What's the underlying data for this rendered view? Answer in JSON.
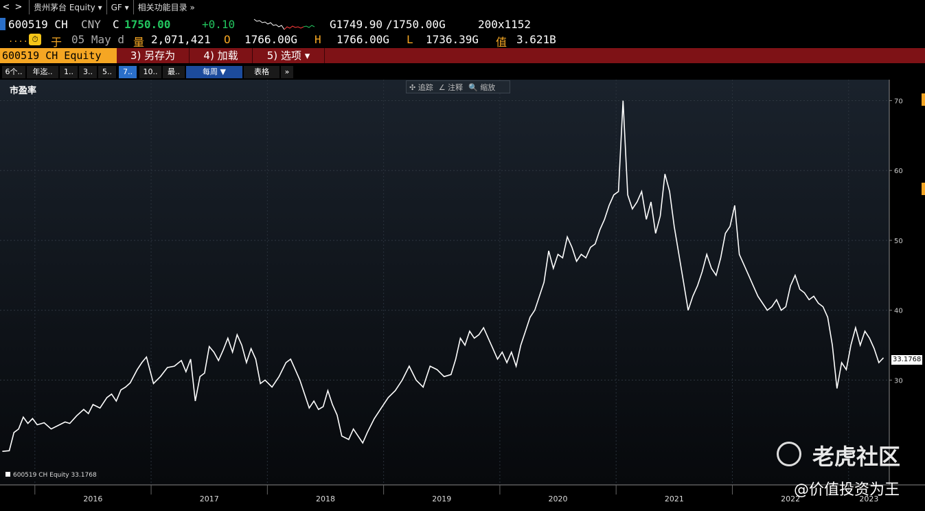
{
  "topnav": {
    "back": "<",
    "forward": ">",
    "security": "贵州茅台 Equity ▾",
    "func": "GF ▾",
    "related": "相关功能目录 »"
  },
  "quote": {
    "ticker": "600519 CH",
    "currency": "CNY",
    "c_label": "C",
    "last": "1750.00",
    "change": "+0.10",
    "bid": "G1749.90",
    "ask": "/1750.00G",
    "size": "200x1152",
    "dots": "....",
    "clock_icon": "clock-icon",
    "at_label": "于",
    "date": "05 May d",
    "vol_label": "量",
    "volume": "2,071,421",
    "o_label": "O",
    "open": "1766.00G",
    "h_label": "H",
    "high": "1766.00G",
    "l_label": "L",
    "low": "1736.39G",
    "val_label": "值",
    "value": "3.621B"
  },
  "fbar": {
    "security": "600519 CH Equity",
    "save": "3) 另存为",
    "load": "4) 加载",
    "options": "5) 选项 ▾"
  },
  "tabs": [
    "6个..",
    "年迄..",
    "1..",
    "3..",
    "5..",
    "7..",
    "10..",
    "最..",
    "每周 ▼",
    "表格",
    "»"
  ],
  "toolbox": {
    "track": "✣ 追踪",
    "annotate": "∠ 注释",
    "zoom": "🔍 缩放"
  },
  "chart_title": "市盈率",
  "legend": "600519 CH Equity  33.1768",
  "last_value": "33.1768",
  "watermark": {
    "brand": "老虎社区",
    "user": "@价值投资为王"
  },
  "colors": {
    "accent": "#f5a623",
    "fbar": "#7e1216",
    "up": "#22c55e",
    "orange": "#f5a623"
  },
  "chart_data": {
    "type": "line",
    "ylim": [
      15,
      73
    ],
    "yticks": [
      30,
      40,
      50,
      60,
      70
    ],
    "xlim": [
      2015.7,
      2023.35
    ],
    "xticks": [
      "2016",
      "2017",
      "2018",
      "2019",
      "2020",
      "2021",
      "2022",
      "2023"
    ],
    "series": [
      {
        "name": "600519 CH Equity",
        "points": [
          [
            2015.72,
            19.8
          ],
          [
            2015.78,
            19.9
          ],
          [
            2015.82,
            22.5
          ],
          [
            2015.86,
            23.0
          ],
          [
            2015.9,
            24.7
          ],
          [
            2015.94,
            23.8
          ],
          [
            2015.98,
            24.5
          ],
          [
            2016.02,
            23.6
          ],
          [
            2016.08,
            23.9
          ],
          [
            2016.14,
            23.0
          ],
          [
            2016.2,
            23.5
          ],
          [
            2016.26,
            24.0
          ],
          [
            2016.3,
            23.8
          ],
          [
            2016.36,
            24.9
          ],
          [
            2016.42,
            25.8
          ],
          [
            2016.46,
            25.2
          ],
          [
            2016.5,
            26.5
          ],
          [
            2016.56,
            26.0
          ],
          [
            2016.62,
            27.5
          ],
          [
            2016.66,
            28.0
          ],
          [
            2016.7,
            27.0
          ],
          [
            2016.74,
            28.6
          ],
          [
            2016.78,
            29.0
          ],
          [
            2016.82,
            29.6
          ],
          [
            2016.88,
            31.5
          ],
          [
            2016.92,
            32.5
          ],
          [
            2016.96,
            33.3
          ],
          [
            2017.02,
            29.5
          ],
          [
            2017.08,
            30.5
          ],
          [
            2017.14,
            31.8
          ],
          [
            2017.2,
            32.0
          ],
          [
            2017.26,
            32.8
          ],
          [
            2017.3,
            31.2
          ],
          [
            2017.34,
            33.0
          ],
          [
            2017.38,
            27.0
          ],
          [
            2017.42,
            30.5
          ],
          [
            2017.46,
            31.0
          ],
          [
            2017.5,
            34.8
          ],
          [
            2017.54,
            34.0
          ],
          [
            2017.58,
            32.8
          ],
          [
            2017.62,
            34.3
          ],
          [
            2017.66,
            36.0
          ],
          [
            2017.7,
            34.0
          ],
          [
            2017.74,
            36.5
          ],
          [
            2017.78,
            35.0
          ],
          [
            2017.82,
            32.5
          ],
          [
            2017.86,
            34.5
          ],
          [
            2017.9,
            33.0
          ],
          [
            2017.94,
            29.5
          ],
          [
            2017.98,
            30.0
          ],
          [
            2018.04,
            29.0
          ],
          [
            2018.1,
            30.5
          ],
          [
            2018.16,
            32.5
          ],
          [
            2018.2,
            33.0
          ],
          [
            2018.24,
            31.5
          ],
          [
            2018.28,
            30.0
          ],
          [
            2018.32,
            28.0
          ],
          [
            2018.36,
            26.0
          ],
          [
            2018.4,
            27.0
          ],
          [
            2018.44,
            25.8
          ],
          [
            2018.48,
            26.2
          ],
          [
            2018.52,
            28.5
          ],
          [
            2018.56,
            26.5
          ],
          [
            2018.6,
            25.0
          ],
          [
            2018.64,
            22.0
          ],
          [
            2018.7,
            21.5
          ],
          [
            2018.74,
            23.0
          ],
          [
            2018.78,
            22.0
          ],
          [
            2018.82,
            21.0
          ],
          [
            2018.86,
            22.5
          ],
          [
            2018.92,
            24.5
          ],
          [
            2018.98,
            26.0
          ],
          [
            2019.04,
            27.5
          ],
          [
            2019.1,
            28.5
          ],
          [
            2019.16,
            30.0
          ],
          [
            2019.22,
            32.0
          ],
          [
            2019.28,
            30.0
          ],
          [
            2019.34,
            29.0
          ],
          [
            2019.4,
            32.0
          ],
          [
            2019.46,
            31.5
          ],
          [
            2019.52,
            30.5
          ],
          [
            2019.58,
            30.8
          ],
          [
            2019.62,
            33.0
          ],
          [
            2019.66,
            36.0
          ],
          [
            2019.7,
            35.0
          ],
          [
            2019.74,
            37.0
          ],
          [
            2019.78,
            36.0
          ],
          [
            2019.82,
            36.5
          ],
          [
            2019.86,
            37.5
          ],
          [
            2019.9,
            36.0
          ],
          [
            2019.94,
            34.5
          ],
          [
            2019.98,
            33.0
          ],
          [
            2020.02,
            34.0
          ],
          [
            2020.06,
            32.5
          ],
          [
            2020.1,
            34.0
          ],
          [
            2020.14,
            32.0
          ],
          [
            2020.18,
            35.0
          ],
          [
            2020.22,
            37.0
          ],
          [
            2020.26,
            39.0
          ],
          [
            2020.3,
            40.0
          ],
          [
            2020.34,
            42.0
          ],
          [
            2020.38,
            44.0
          ],
          [
            2020.42,
            48.5
          ],
          [
            2020.46,
            46.0
          ],
          [
            2020.5,
            48.0
          ],
          [
            2020.54,
            47.5
          ],
          [
            2020.58,
            50.5
          ],
          [
            2020.62,
            49.0
          ],
          [
            2020.66,
            47.0
          ],
          [
            2020.7,
            48.0
          ],
          [
            2020.74,
            47.5
          ],
          [
            2020.78,
            49.0
          ],
          [
            2020.82,
            49.5
          ],
          [
            2020.86,
            51.5
          ],
          [
            2020.9,
            53.0
          ],
          [
            2020.94,
            55.0
          ],
          [
            2020.98,
            56.5
          ],
          [
            2021.02,
            57.0
          ],
          [
            2021.06,
            70.0
          ],
          [
            2021.1,
            56.5
          ],
          [
            2021.14,
            54.5
          ],
          [
            2021.18,
            55.5
          ],
          [
            2021.22,
            57.0
          ],
          [
            2021.26,
            53.0
          ],
          [
            2021.3,
            55.5
          ],
          [
            2021.34,
            51.0
          ],
          [
            2021.38,
            53.5
          ],
          [
            2021.42,
            59.5
          ],
          [
            2021.46,
            57.0
          ],
          [
            2021.5,
            52.0
          ],
          [
            2021.54,
            48.0
          ],
          [
            2021.58,
            44.0
          ],
          [
            2021.62,
            40.0
          ],
          [
            2021.66,
            42.0
          ],
          [
            2021.7,
            43.5
          ],
          [
            2021.74,
            45.5
          ],
          [
            2021.78,
            48.0
          ],
          [
            2021.82,
            46.0
          ],
          [
            2021.86,
            45.0
          ],
          [
            2021.9,
            47.5
          ],
          [
            2021.94,
            51.0
          ],
          [
            2021.98,
            52.0
          ],
          [
            2022.02,
            55.0
          ],
          [
            2022.06,
            48.0
          ],
          [
            2022.1,
            46.5
          ],
          [
            2022.14,
            45.0
          ],
          [
            2022.18,
            43.5
          ],
          [
            2022.22,
            42.0
          ],
          [
            2022.26,
            41.0
          ],
          [
            2022.3,
            40.0
          ],
          [
            2022.34,
            40.5
          ],
          [
            2022.38,
            41.5
          ],
          [
            2022.42,
            40.0
          ],
          [
            2022.46,
            40.5
          ],
          [
            2022.5,
            43.5
          ],
          [
            2022.54,
            45.0
          ],
          [
            2022.58,
            43.0
          ],
          [
            2022.62,
            42.5
          ],
          [
            2022.66,
            41.5
          ],
          [
            2022.7,
            42.0
          ],
          [
            2022.74,
            41.0
          ],
          [
            2022.78,
            40.5
          ],
          [
            2022.82,
            39.0
          ],
          [
            2022.86,
            35.0
          ],
          [
            2022.9,
            28.8
          ],
          [
            2022.94,
            32.5
          ],
          [
            2022.98,
            31.5
          ],
          [
            2023.02,
            35.0
          ],
          [
            2023.06,
            37.5
          ],
          [
            2023.1,
            35.0
          ],
          [
            2023.14,
            37.0
          ],
          [
            2023.18,
            36.0
          ],
          [
            2023.22,
            34.5
          ],
          [
            2023.26,
            32.5
          ],
          [
            2023.3,
            33.2
          ]
        ]
      }
    ]
  }
}
